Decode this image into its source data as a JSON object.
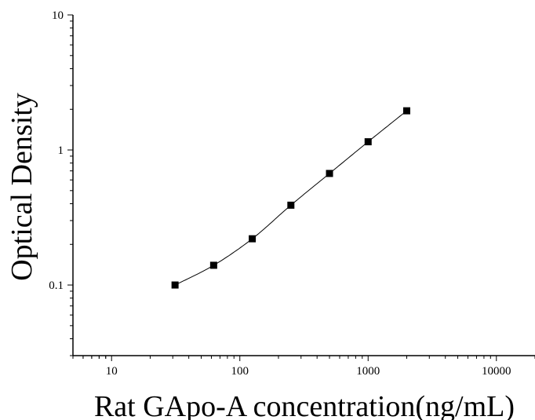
{
  "chart_data": {
    "type": "scatter",
    "title": "",
    "xlabel": "Rat GApo-A concentration(ng/mL)",
    "ylabel": "Optical Density",
    "x_scale": "log",
    "y_scale": "log",
    "xlim": [
      5,
      20000
    ],
    "ylim": [
      0.03,
      10
    ],
    "x_ticks": [
      {
        "value": 10,
        "label": "10"
      },
      {
        "value": 100,
        "label": "100"
      },
      {
        "value": 1000,
        "label": "1000"
      },
      {
        "value": 10000,
        "label": "10000"
      }
    ],
    "y_ticks": [
      {
        "value": 0.1,
        "label": "0.1"
      },
      {
        "value": 1,
        "label": "1"
      },
      {
        "value": 10,
        "label": "10"
      }
    ],
    "grid": false,
    "legend": "none",
    "series": [
      {
        "x": [
          31.25,
          62.5,
          125,
          250,
          500,
          1000,
          2000
        ],
        "y": [
          0.1,
          0.14,
          0.22,
          0.39,
          0.67,
          1.15,
          1.95
        ],
        "marker": "square",
        "fit_line": true,
        "color": "#000000"
      }
    ]
  }
}
